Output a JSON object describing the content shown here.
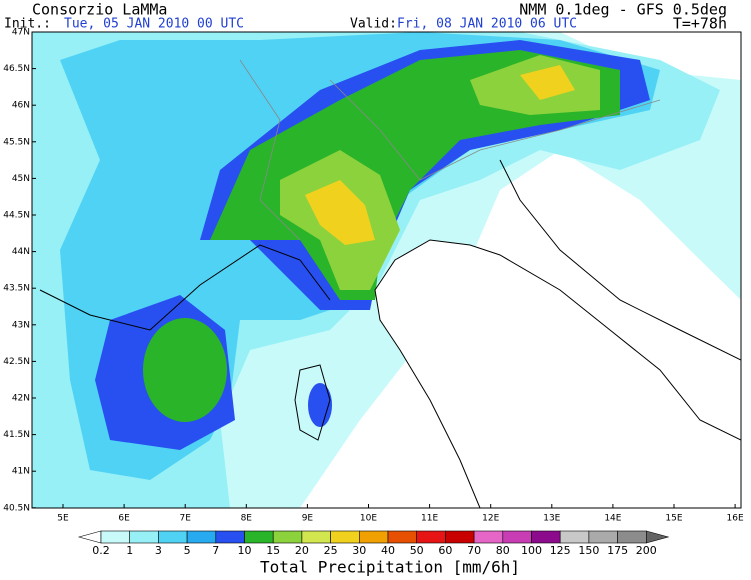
{
  "header": {
    "title": "Consorzio LaMMa",
    "model": "NMM 0.1deg - GFS 0.5deg",
    "init_label": "Init.:",
    "init": "Tue, 05 JAN 2010  00 UTC",
    "valid_label": "Valid:",
    "valid": "Fri, 08 JAN 2010  06 UTC",
    "lead": "T=+78h"
  },
  "map": {
    "lat_labels": [
      "47N",
      "46.5N",
      "46N",
      "45.5N",
      "45N",
      "44.5N",
      "44N",
      "43.5N",
      "43N",
      "42.5N",
      "42N",
      "41.5N",
      "41N",
      "40.5N"
    ],
    "lon_labels": [
      "5E",
      "6E",
      "7E",
      "8E",
      "9E",
      "10E",
      "11E",
      "12E",
      "13E",
      "14E",
      "15E",
      "16E"
    ]
  },
  "legend": {
    "title": "Total Precipitation [mm/6h]",
    "levels": [
      "0.2",
      "1",
      "3",
      "5",
      "7",
      "10",
      "15",
      "20",
      "25",
      "30",
      "40",
      "50",
      "60",
      "70",
      "80",
      "100",
      "125",
      "150",
      "175",
      "200"
    ],
    "colors": [
      "#ffffff",
      "#c8fafa",
      "#96f0f5",
      "#50d2f5",
      "#28aaf0",
      "#2850f0",
      "#2ab42a",
      "#8cd23c",
      "#d2e650",
      "#f0d21e",
      "#f0a000",
      "#e65000",
      "#e61414",
      "#c80000",
      "#e666c8",
      "#c83cb4",
      "#8c0a8c",
      "#c8c8c8",
      "#aaaaaa",
      "#8c8c8c",
      "#646464"
    ]
  }
}
